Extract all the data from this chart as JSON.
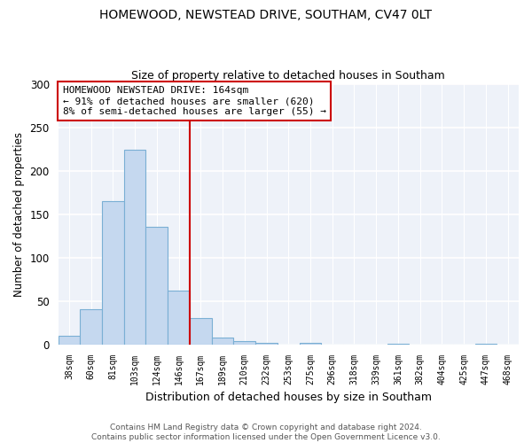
{
  "title": "HOMEWOOD, NEWSTEAD DRIVE, SOUTHAM, CV47 0LT",
  "subtitle": "Size of property relative to detached houses in Southam",
  "xlabel": "Distribution of detached houses by size in Southam",
  "ylabel": "Number of detached properties",
  "bin_labels": [
    "38sqm",
    "60sqm",
    "81sqm",
    "103sqm",
    "124sqm",
    "146sqm",
    "167sqm",
    "189sqm",
    "210sqm",
    "232sqm",
    "253sqm",
    "275sqm",
    "296sqm",
    "318sqm",
    "339sqm",
    "361sqm",
    "382sqm",
    "404sqm",
    "425sqm",
    "447sqm",
    "468sqm"
  ],
  "bar_values": [
    10,
    40,
    165,
    224,
    135,
    62,
    30,
    8,
    4,
    2,
    0,
    2,
    0,
    0,
    0,
    1,
    0,
    0,
    0,
    1,
    0
  ],
  "bar_color": "#c5d8ef",
  "bar_edge_color": "#7aafd4",
  "vline_color": "#cc0000",
  "annotation_text": "HOMEWOOD NEWSTEAD DRIVE: 164sqm\n← 91% of detached houses are smaller (620)\n8% of semi-detached houses are larger (55) →",
  "annotation_box_color": "#ffffff",
  "annotation_box_edge": "#cc0000",
  "ylim": [
    0,
    300
  ],
  "yticks": [
    0,
    50,
    100,
    150,
    200,
    250,
    300
  ],
  "footer_line1": "Contains HM Land Registry data © Crown copyright and database right 2024.",
  "footer_line2": "Contains public sector information licensed under the Open Government Licence v3.0.",
  "bg_color": "#ffffff",
  "plot_bg_color": "#eef2f9"
}
